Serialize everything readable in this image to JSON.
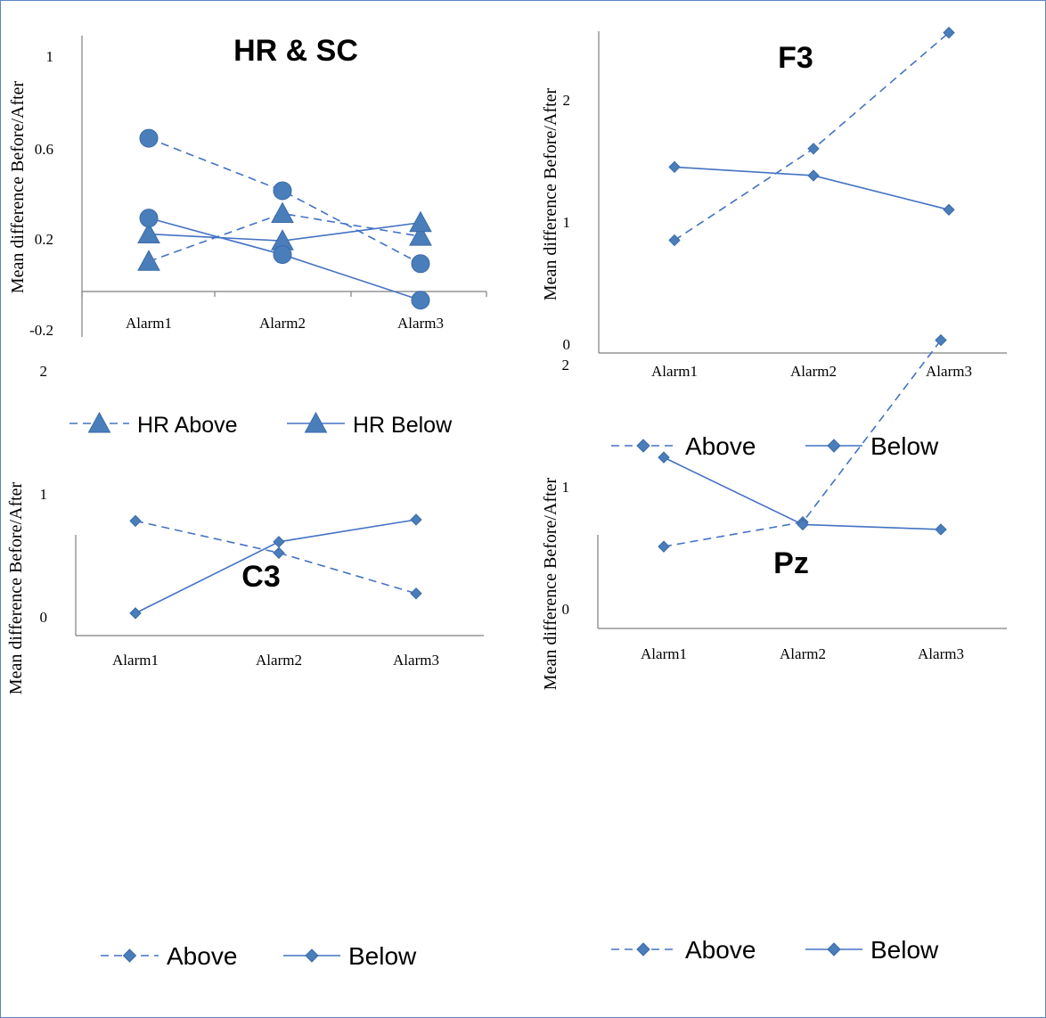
{
  "chart_data": [
    {
      "type": "line",
      "title": "HR & SC",
      "ylabel": "Mean difference Before/After",
      "xlabel": "",
      "categories": [
        "Alarm1",
        "Alarm2",
        "Alarm3"
      ],
      "yticks": [
        "1",
        "0.6",
        "0.2",
        "-0.2"
      ],
      "ylim": [
        -0.25,
        1.1
      ],
      "series": [
        {
          "name": "HR Above",
          "marker": "triangle",
          "dash": true,
          "values": [
            0.1,
            0.31,
            0.21
          ]
        },
        {
          "name": "HR Below",
          "marker": "triangle",
          "dash": false,
          "values": [
            0.22,
            0.19,
            0.27
          ]
        },
        {
          "name": "",
          "marker": "circle",
          "dash": true,
          "values": [
            0.64,
            0.41,
            0.09
          ]
        },
        {
          "name": "",
          "marker": "circle",
          "dash": false,
          "values": [
            0.29,
            0.13,
            -0.07
          ]
        }
      ],
      "legend_position": "bottom"
    },
    {
      "type": "line",
      "title": "F3",
      "ylabel": "Mean difference Before/After",
      "xlabel": "",
      "categories": [
        "Alarm1",
        "Alarm2",
        "Alarm3"
      ],
      "yticks": [
        "2",
        "1",
        "0"
      ],
      "ylim": [
        0,
        2.6
      ],
      "series": [
        {
          "name": "Above",
          "marker": "diamond",
          "dash": true,
          "values": [
            0.85,
            1.6,
            2.55
          ]
        },
        {
          "name": "Below",
          "marker": "diamond",
          "dash": false,
          "values": [
            1.45,
            1.38,
            1.1
          ]
        }
      ],
      "legend_position": "bottom"
    },
    {
      "type": "line",
      "title": "C3",
      "ylabel": "Mean difference Before/After",
      "xlabel": "",
      "categories": [
        "Alarm1",
        "Alarm2",
        "Alarm3"
      ],
      "yticks": [
        "2",
        "1",
        "0"
      ],
      "ylim": [
        0,
        2.6
      ],
      "series": [
        {
          "name": "Above",
          "marker": "diamond",
          "dash": true,
          "values": [
            0.78,
            0.52,
            0.19
          ]
        },
        {
          "name": "Below",
          "marker": "diamond",
          "dash": false,
          "values": [
            0.03,
            0.61,
            0.79
          ]
        }
      ],
      "legend_position": "bottom"
    },
    {
      "type": "line",
      "title": "Pz",
      "ylabel": "Mean difference Before/After",
      "xlabel": "",
      "categories": [
        "Alarm1",
        "Alarm2",
        "Alarm3"
      ],
      "yticks": [
        "2",
        "1",
        "0"
      ],
      "ylim": [
        0,
        2.6
      ],
      "series": [
        {
          "name": "Above",
          "marker": "diamond",
          "dash": true,
          "values": [
            0.51,
            0.71,
            2.2
          ]
        },
        {
          "name": "Below",
          "marker": "diamond",
          "dash": false,
          "values": [
            1.24,
            0.69,
            0.65
          ]
        }
      ],
      "legend_position": "bottom"
    }
  ],
  "colors": {
    "series": "#4472c4",
    "marker_fill": "#4a7ebb",
    "axis": "#7f7f7f"
  }
}
